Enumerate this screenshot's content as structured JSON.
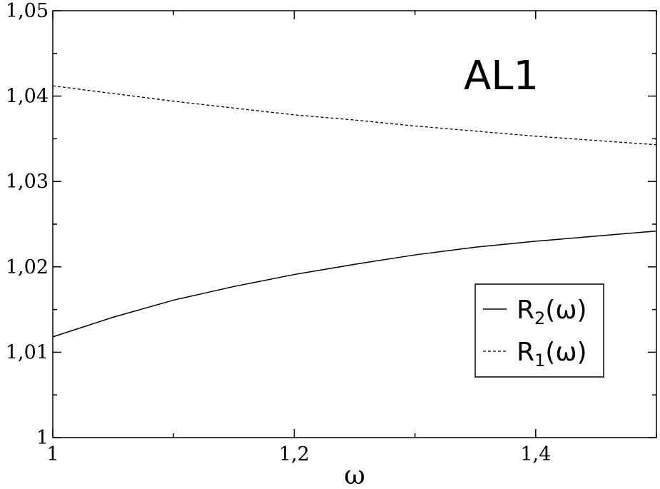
{
  "chart_data": {
    "type": "line",
    "title": "",
    "annotation": "AL1",
    "xlabel": "ω",
    "ylabel": "",
    "xlim": [
      1.0,
      1.5
    ],
    "ylim": [
      1.0,
      1.05
    ],
    "x_ticks": [
      {
        "value": 1.0,
        "label": "1"
      },
      {
        "value": 1.2,
        "label": "1,2"
      },
      {
        "value": 1.4,
        "label": "1,4"
      }
    ],
    "y_ticks": [
      {
        "value": 1.0,
        "label": "1"
      },
      {
        "value": 1.01,
        "label": "1,01"
      },
      {
        "value": 1.02,
        "label": "1,02"
      },
      {
        "value": 1.03,
        "label": "1,03"
      },
      {
        "value": 1.04,
        "label": "1,04"
      },
      {
        "value": 1.05,
        "label": "1,05"
      }
    ],
    "grid": false,
    "legend_position": "right",
    "series": [
      {
        "name": "R2(ω)",
        "legend_main": "R",
        "legend_sub": "2",
        "legend_tail": "(ω)",
        "style": "solid",
        "color": "#000000",
        "x": [
          1.0,
          1.05,
          1.1,
          1.15,
          1.2,
          1.25,
          1.3,
          1.35,
          1.4,
          1.45,
          1.5
        ],
        "y": [
          1.0118,
          1.0141,
          1.0161,
          1.0177,
          1.0191,
          1.0203,
          1.0214,
          1.0223,
          1.023,
          1.0236,
          1.0242
        ]
      },
      {
        "name": "R1(ω)",
        "legend_main": "R",
        "legend_sub": "1",
        "legend_tail": "(ω)",
        "style": "dashed",
        "color": "#000000",
        "x": [
          1.0,
          1.05,
          1.1,
          1.15,
          1.2,
          1.25,
          1.3,
          1.35,
          1.4,
          1.45,
          1.5
        ],
        "y": [
          1.0412,
          1.0403,
          1.0394,
          1.0386,
          1.0378,
          1.0372,
          1.0365,
          1.0359,
          1.0353,
          1.0348,
          1.0343
        ]
      }
    ]
  }
}
